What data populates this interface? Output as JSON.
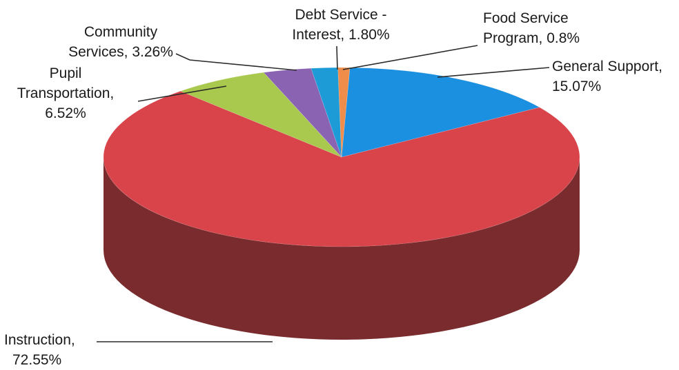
{
  "chart_data": {
    "type": "pie",
    "style": "3d",
    "title": "",
    "categories": [
      "General Support",
      "Instruction",
      "Pupil Transportation",
      "Community Services",
      "Debt Service - Interest",
      "Food Service Program"
    ],
    "values": [
      15.07,
      72.55,
      6.52,
      3.26,
      1.8,
      0.8
    ],
    "value_labels": [
      "15.07%",
      "72.55%",
      "6.52%",
      "3.26%",
      "1.80%",
      "0.8%"
    ],
    "colors": [
      "#1b8fe0",
      "#d9444b",
      "#a9c94e",
      "#8a64b2",
      "#1d9bd6",
      "#f08d4a"
    ],
    "side_colors": [
      "#0f5f9a",
      "#7a2b2d",
      "#6f8a30",
      "#5a3f7a",
      "#126b96",
      "#a85d2c"
    ],
    "labels": [
      {
        "lines": [
          "General Support,",
          "15.07%"
        ]
      },
      {
        "lines": [
          "Instruction,",
          "72.55%"
        ]
      },
      {
        "lines": [
          "Pupil",
          "Transportation,",
          "6.52%"
        ]
      },
      {
        "lines": [
          "Community",
          "Services, 3.26%"
        ]
      },
      {
        "lines": [
          "Debt Service -",
          "Interest, 1.80%"
        ]
      },
      {
        "lines": [
          "Food Service",
          "Program, 0.8%"
        ]
      }
    ]
  }
}
